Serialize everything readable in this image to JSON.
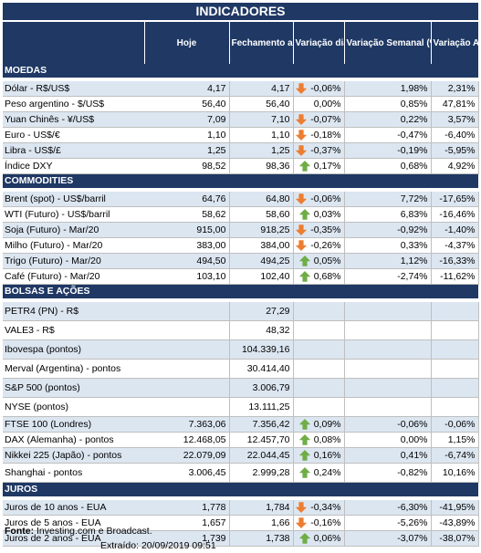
{
  "title": "INDICADORES",
  "headers": {
    "hoje": "Hoje",
    "fechamento": "Fechamento anterior",
    "var_diaria": "Variação diária (%)",
    "var_semanal": "Variação Semanal (%)",
    "var_anual": "Variação Anual (%)"
  },
  "colors": {
    "header_bg": "#1f3864",
    "row_alt": "#dce6f1",
    "up": "#70ad47",
    "down": "#ed7d31"
  },
  "sections": [
    {
      "name": "MOEDAS",
      "rows": [
        {
          "label": "Dólar - R$/US$",
          "hoje": "4,17",
          "fech": "4,17",
          "dir": "down",
          "dia": "-0,06%",
          "sem": "1,98%",
          "ano": "2,31%"
        },
        {
          "label": "Peso argentino - $/US$",
          "hoje": "56,40",
          "fech": "56,40",
          "dir": "",
          "dia": "0,00%",
          "sem": "0,85%",
          "ano": "47,81%"
        },
        {
          "label": "Yuan Chinês - ¥/US$",
          "hoje": "7,09",
          "fech": "7,10",
          "dir": "down",
          "dia": "-0,07%",
          "sem": "0,22%",
          "ano": "3,57%"
        },
        {
          "label": "Euro - US$/€",
          "hoje": "1,10",
          "fech": "1,10",
          "dir": "down",
          "dia": "-0,18%",
          "sem": "-0,47%",
          "ano": "-6,40%"
        },
        {
          "label": "Libra - US$/£",
          "hoje": "1,25",
          "fech": "1,25",
          "dir": "down",
          "dia": "-0,37%",
          "sem": "-0,19%",
          "ano": "-5,95%"
        },
        {
          "label": "Índice DXY",
          "hoje": "98,52",
          "fech": "98,36",
          "dir": "up",
          "dia": "0,17%",
          "sem": "0,68%",
          "ano": "4,92%"
        }
      ]
    },
    {
      "name": "COMMODITIES",
      "rows": [
        {
          "label": "Brent (spot) - US$/barril",
          "hoje": "64,76",
          "fech": "64,80",
          "dir": "down",
          "dia": "-0,06%",
          "sem": "7,72%",
          "ano": "-17,65%"
        },
        {
          "label": "WTI (Futuro) - US$/barril",
          "hoje": "58,62",
          "fech": "58,60",
          "dir": "up",
          "dia": "0,03%",
          "sem": "6,83%",
          "ano": "-16,46%"
        },
        {
          "label": "Soja (Futuro) - Mar/20",
          "hoje": "915,00",
          "fech": "918,25",
          "dir": "down",
          "dia": "-0,35%",
          "sem": "-0,92%",
          "ano": "-1,40%"
        },
        {
          "label": "Milho (Futuro) - Mar/20",
          "hoje": "383,00",
          "fech": "384,00",
          "dir": "down",
          "dia": "-0,26%",
          "sem": "0,33%",
          "ano": "-4,37%"
        },
        {
          "label": "Trigo (Futuro) - Mar/20",
          "hoje": "494,50",
          "fech": "494,25",
          "dir": "up",
          "dia": "0,05%",
          "sem": "1,12%",
          "ano": "-16,33%"
        },
        {
          "label": "Café (Futuro) - Mar/20",
          "hoje": "103,10",
          "fech": "102,40",
          "dir": "up",
          "dia": "0,68%",
          "sem": "-2,74%",
          "ano": "-11,62%"
        }
      ]
    },
    {
      "name": "BOLSAS E AÇÕES",
      "rows": [
        {
          "label": "PETR4 (PN) - R$",
          "hoje": "",
          "fech": "27,29",
          "dir": "",
          "dia": "",
          "sem": "",
          "ano": "",
          "tall": true
        },
        {
          "label": "VALE3 - R$",
          "hoje": "",
          "fech": "48,32",
          "dir": "",
          "dia": "",
          "sem": "",
          "ano": "",
          "tall": true
        },
        {
          "label": "Ibovespa (pontos)",
          "hoje": "",
          "fech": "104.339,16",
          "dir": "",
          "dia": "",
          "sem": "",
          "ano": "",
          "tall": true
        },
        {
          "label": "Merval (Argentina) - pontos",
          "hoje": "",
          "fech": "30.414,40",
          "dir": "",
          "dia": "",
          "sem": "",
          "ano": "",
          "tall": true
        },
        {
          "label": "S&P 500 (pontos)",
          "hoje": "",
          "fech": "3.006,79",
          "dir": "",
          "dia": "",
          "sem": "",
          "ano": "",
          "tall": true
        },
        {
          "label": "NYSE (pontos)",
          "hoje": "",
          "fech": "13.111,25",
          "dir": "",
          "dia": "",
          "sem": "",
          "ano": "",
          "tall": true
        },
        {
          "label": "FTSE 100 (Londres)",
          "hoje": "7.363,06",
          "fech": "7.356,42",
          "dir": "up",
          "dia": "0,09%",
          "sem": "-0,06%",
          "ano": "-0,06%"
        },
        {
          "label": "DAX (Alemanha) - pontos",
          "hoje": "12.468,05",
          "fech": "12.457,70",
          "dir": "up",
          "dia": "0,08%",
          "sem": "0,00%",
          "ano": "1,15%"
        },
        {
          "label": "Nikkei 225 (Japão) - pontos",
          "hoje": "22.079,09",
          "fech": "22.044,45",
          "dir": "up",
          "dia": "0,16%",
          "sem": "0,41%",
          "ano": "-6,74%"
        },
        {
          "label": "Shanghai - pontos",
          "hoje": "3.006,45",
          "fech": "2.999,28",
          "dir": "up",
          "dia": "0,24%",
          "sem": "-0,82%",
          "ano": "10,16%",
          "tall": true
        }
      ]
    },
    {
      "name": "JUROS",
      "rows": [
        {
          "label": "Juros de 10 anos - EUA",
          "hoje": "1,778",
          "fech": "1,784",
          "dir": "down",
          "dia": "-0,34%",
          "sem": "-6,30%",
          "ano": "-41,95%"
        },
        {
          "label": "Juros de 5 anos - EUA",
          "hoje": "1,657",
          "fech": "1,66",
          "dir": "down",
          "dia": "-0,16%",
          "sem": "-5,26%",
          "ano": "-43,89%"
        },
        {
          "label": "Juros de 2 anos - EUA",
          "hoje": "1,739",
          "fech": "1,738",
          "dir": "up",
          "dia": "0,06%",
          "sem": "-3,07%",
          "ano": "-38,07%"
        }
      ]
    }
  ],
  "footer": {
    "fonte_label": "Fonte:",
    "fonte_text": "Investing.com e Broadcast.",
    "extraido_label": "Extraído:",
    "extraido_value": "20/09/2019 09:51"
  }
}
